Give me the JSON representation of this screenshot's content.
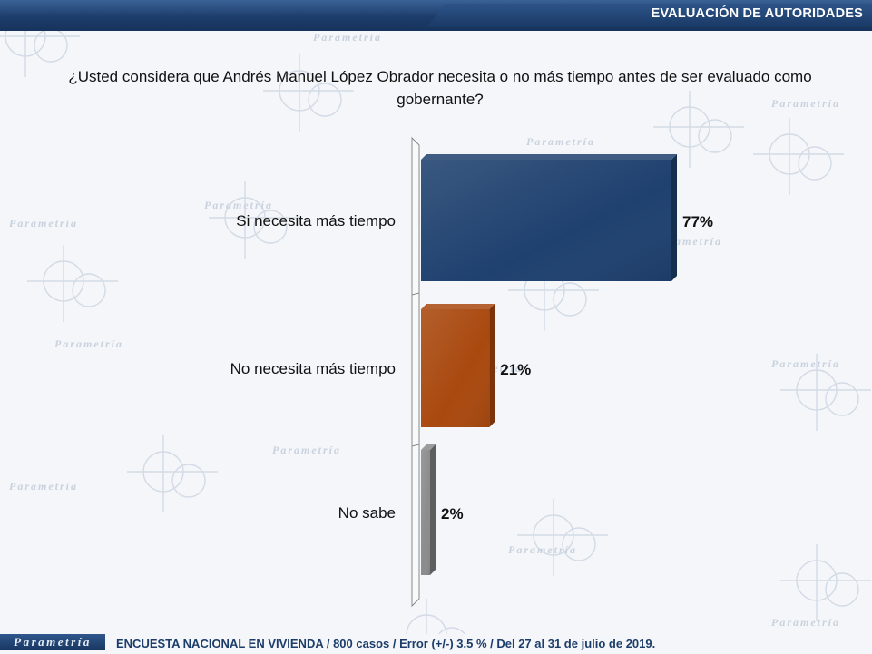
{
  "header": {
    "title": "EVALUACIÓN DE AUTORIDADES"
  },
  "watermark": {
    "brand": "Parametría"
  },
  "chart_data": {
    "type": "bar",
    "orientation": "horizontal",
    "title": "¿Usted considera que Andrés Manuel López Obrador necesita o no más tiempo antes de ser evaluado como gobernante?",
    "categories": [
      "Si necesita más tiempo",
      "No necesita más tiempo",
      "No sabe"
    ],
    "values": [
      77,
      21,
      2
    ],
    "value_labels": [
      "77%",
      "21%",
      "2%"
    ],
    "unit": "%",
    "xlim": [
      0,
      77
    ],
    "grid": false,
    "legend": "none",
    "colors": [
      "#1f416f",
      "#a9490f",
      "#8c8c8c"
    ],
    "colors_side": [
      "#15304f",
      "#7a330a",
      "#5e5e5e"
    ]
  },
  "footer": {
    "brand": "Parametría",
    "note": "ENCUESTA NACIONAL EN VIVIENDA / 800 casos / Error (+/-) 3.5 % / Del 27 al 31 de julio de 2019."
  }
}
